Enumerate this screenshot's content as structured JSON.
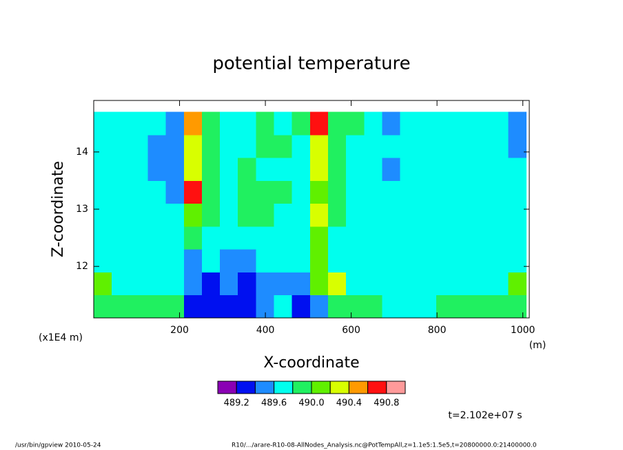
{
  "chart_data": {
    "type": "contour",
    "title": "potential temperature",
    "x_label": "X-coordinate",
    "y_label": "Z-coordinate",
    "x_unit": "(m)",
    "y_unit": "(x1E4 m)",
    "time_label": "t=2.102e+07 s",
    "footer_left": "/usr/bin/gpview  2010-05-24",
    "footer_right": "R10/.../arare-R10-08-AllNodes_Analysis.nc@PotTempAll,z=1.1e5:1.5e5,t=20800000.0:21400000.0",
    "xlim": [
      0,
      1015
    ],
    "ylim": [
      11.1,
      14.9
    ],
    "xticks": [
      200,
      400,
      600,
      800,
      1000
    ],
    "yticks": [
      12,
      13,
      14
    ],
    "levels": [
      489.2,
      489.4,
      489.6,
      489.8,
      490,
      490.2,
      490.4,
      490.6,
      490.8
    ],
    "colors": [
      "#8a00b4",
      "#0010f0",
      "#1e8cff",
      "#00ffee",
      "#20f060",
      "#60f000",
      "#d8ff00",
      "#ff9a00",
      "#ff1010",
      "#ff9a9a"
    ],
    "colorbar_ticks": [
      489.2,
      489.6,
      {
        "value": 490,
        "label": "490.0"
      },
      490.4,
      490.8
    ],
    "x": [
      21,
      63,
      105,
      147,
      189,
      231,
      273,
      315,
      357,
      399,
      441,
      483,
      525,
      567,
      609,
      651,
      693,
      735,
      777,
      819,
      861,
      903,
      945,
      987
    ],
    "y": [
      11.3,
      11.7,
      12.1,
      12.5,
      12.9,
      13.3,
      13.7,
      14.1,
      14.5
    ],
    "z": [
      [
        489.9,
        489.9,
        489.9,
        489.9,
        489.9,
        489.3,
        489.3,
        489.3,
        489.3,
        489.5,
        489.7,
        489.3,
        489.5,
        489.9,
        489.9,
        489.9,
        489.7,
        489.7,
        489.7,
        489.9,
        489.9,
        489.9,
        489.9,
        489.9
      ],
      [
        490.1,
        489.7,
        489.7,
        489.7,
        489.7,
        489.5,
        489.3,
        489.5,
        489.3,
        489.5,
        489.5,
        489.5,
        490.1,
        490.3,
        489.7,
        489.7,
        489.7,
        489.7,
        489.7,
        489.7,
        489.7,
        489.7,
        489.7,
        490.1
      ],
      [
        489.7,
        489.7,
        489.7,
        489.7,
        489.7,
        489.5,
        489.7,
        489.5,
        489.5,
        489.7,
        489.7,
        489.7,
        490.1,
        489.7,
        489.7,
        489.7,
        489.7,
        489.7,
        489.7,
        489.7,
        489.7,
        489.7,
        489.7,
        489.7
      ],
      [
        489.7,
        489.7,
        489.7,
        489.7,
        489.7,
        489.9,
        489.7,
        489.7,
        489.7,
        489.7,
        489.7,
        489.7,
        490.1,
        489.7,
        489.7,
        489.7,
        489.7,
        489.7,
        489.7,
        489.7,
        489.7,
        489.7,
        489.7,
        489.7
      ],
      [
        489.7,
        489.7,
        489.7,
        489.7,
        489.7,
        490.1,
        489.9,
        489.7,
        489.9,
        489.9,
        489.7,
        489.7,
        490.3,
        489.9,
        489.7,
        489.7,
        489.7,
        489.7,
        489.7,
        489.7,
        489.7,
        489.7,
        489.7,
        489.7
      ],
      [
        489.7,
        489.7,
        489.7,
        489.7,
        489.5,
        490.7,
        489.9,
        489.7,
        489.9,
        489.9,
        489.9,
        489.7,
        490.1,
        489.9,
        489.7,
        489.7,
        489.7,
        489.7,
        489.7,
        489.7,
        489.7,
        489.7,
        489.7,
        489.7
      ],
      [
        489.7,
        489.7,
        489.7,
        489.5,
        489.5,
        490.3,
        489.9,
        489.7,
        489.9,
        489.7,
        489.7,
        489.7,
        490.3,
        489.9,
        489.7,
        489.7,
        489.5,
        489.7,
        489.7,
        489.7,
        489.7,
        489.7,
        489.7,
        489.7
      ],
      [
        489.7,
        489.7,
        489.7,
        489.5,
        489.5,
        490.3,
        489.9,
        489.7,
        489.7,
        489.9,
        489.9,
        489.7,
        490.3,
        489.9,
        489.7,
        489.7,
        489.7,
        489.7,
        489.7,
        489.7,
        489.7,
        489.7,
        489.7,
        489.5
      ],
      [
        489.7,
        489.7,
        489.7,
        489.7,
        489.5,
        490.5,
        489.9,
        489.7,
        489.7,
        489.9,
        489.7,
        489.9,
        490.7,
        489.9,
        489.9,
        489.7,
        489.5,
        489.7,
        489.7,
        489.7,
        489.7,
        489.7,
        489.7,
        489.5
      ]
    ]
  }
}
